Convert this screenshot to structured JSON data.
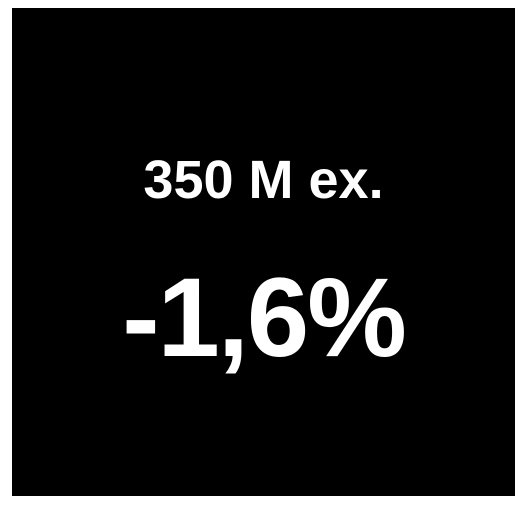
{
  "card": {
    "background_color": "#000000",
    "text_color": "#ffffff",
    "label": "350 M ex.",
    "value": "-1,6%"
  }
}
